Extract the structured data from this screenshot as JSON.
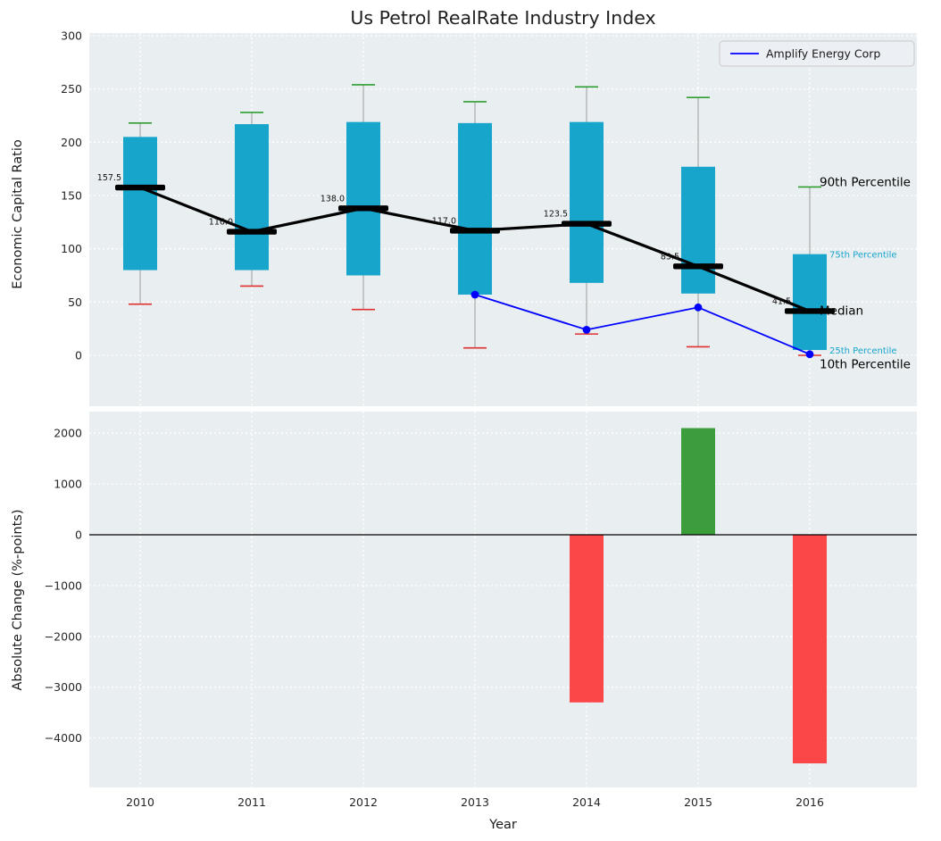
{
  "figure": {
    "title": "Us Petrol RealRate Industry Index"
  },
  "chart_data": [
    {
      "type": "boxplot",
      "title": "Us Petrol RealRate Industry Index",
      "ylabel": "Economic Capital Ratio",
      "ylim": [
        -47,
        300
      ],
      "yticks": [
        0,
        50,
        100,
        150,
        200,
        250,
        300
      ],
      "categories": [
        "2010",
        "2011",
        "2012",
        "2013",
        "2014",
        "2015",
        "2016"
      ],
      "boxes": [
        {
          "year": "2010",
          "p10": 48,
          "p25": 80,
          "median": 157.5,
          "p75": 205,
          "p90": 218
        },
        {
          "year": "2011",
          "p10": 65,
          "p25": 80,
          "median": 116.0,
          "p75": 217,
          "p90": 228
        },
        {
          "year": "2012",
          "p10": 43,
          "p25": 75,
          "median": 138.0,
          "p75": 219,
          "p90": 254
        },
        {
          "year": "2013",
          "p10": 7,
          "p25": 57,
          "median": 117.0,
          "p75": 218,
          "p90": 238
        },
        {
          "year": "2014",
          "p10": 20,
          "p25": 68,
          "median": 123.5,
          "p75": 219,
          "p90": 252
        },
        {
          "year": "2015",
          "p10": 8,
          "p25": 58,
          "median": 83.5,
          "p75": 177,
          "p90": 242
        },
        {
          "year": "2016",
          "p10": 0,
          "p25": 5,
          "median": 41.5,
          "p75": 95,
          "p90": 158
        }
      ],
      "median_labels": [
        "157.5",
        "116.0",
        "138.0",
        "117.0",
        "123.5",
        "83.5",
        "41.5"
      ],
      "overlay_series": {
        "name": "Amplify Energy Corp",
        "x": [
          "2013",
          "2014",
          "2015",
          "2016"
        ],
        "y": [
          57,
          24,
          45,
          1
        ],
        "color": "#0000ff"
      },
      "annotations": [
        {
          "text": "90th Percentile",
          "value": 162,
          "color": "#000000",
          "size": 13.5
        },
        {
          "text": "75th Percentile",
          "value": 95,
          "color": "#18a5cc",
          "size": 10
        },
        {
          "text": "Median",
          "value": 41.5,
          "color": "#000000",
          "size": 13.5
        },
        {
          "text": "25th Percentile",
          "value": 5,
          "color": "#18a5cc",
          "size": 10
        },
        {
          "text": "10th Percentile",
          "value": -9,
          "color": "#000000",
          "size": 13.5
        }
      ],
      "legend": {
        "label": "Amplify Energy Corp",
        "position": "upper right"
      },
      "colors": {
        "box": "#18a5cc",
        "whisker": "#999999",
        "cap_top": "#2f9e2f",
        "cap_bottom": "#e03131",
        "median": "#000000",
        "median_line": "#000000",
        "panel_bg": "#e9eef1",
        "grid": "#ffffff"
      },
      "grid": true,
      "legend_position": "upper right"
    },
    {
      "type": "bar",
      "ylabel": "Absolute Change (%-points)",
      "xlabel": "Year",
      "categories": [
        "2010",
        "2011",
        "2012",
        "2013",
        "2014",
        "2015",
        "2016"
      ],
      "values": [
        0,
        0,
        0,
        0,
        -3300,
        2100,
        -4500
      ],
      "yticks": [
        2000,
        1000,
        0,
        -1000,
        -2000,
        -3000,
        -4000
      ],
      "ylim": [
        -4980,
        2430
      ],
      "colors": {
        "positive": "#3c9d3c",
        "negative": "#fb4747",
        "zero_line": "#000000",
        "panel_bg": "#e9eef1",
        "grid": "#ffffff"
      },
      "grid": true
    }
  ]
}
